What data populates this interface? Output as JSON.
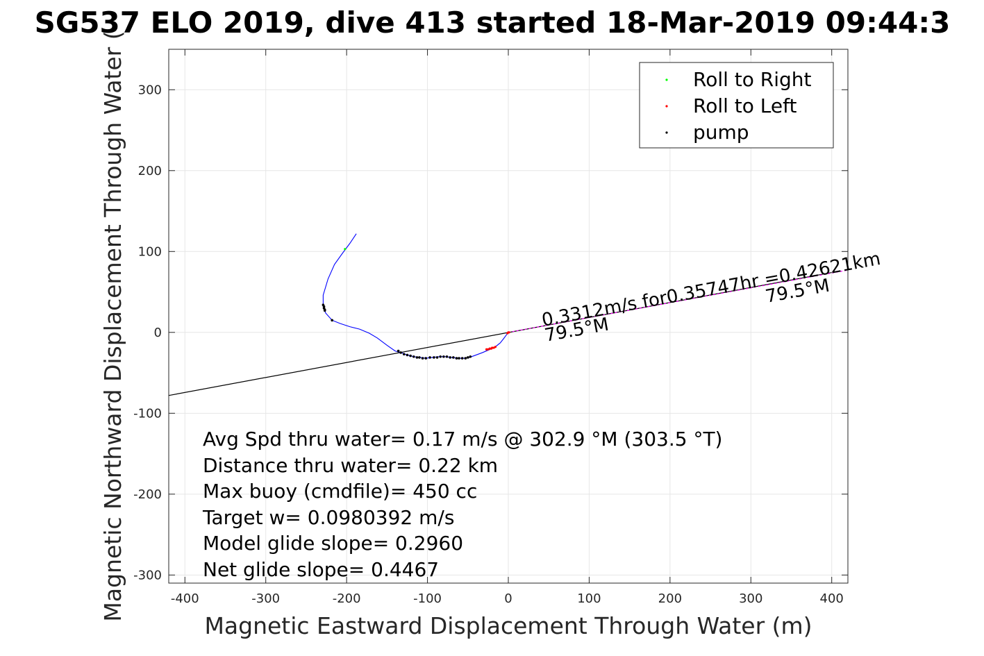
{
  "chart_data": {
    "type": "line",
    "title": "SG537 ELO 2019, dive 413 started 18-Mar-2019 09:44:3",
    "xlabel": "Magnetic Eastward Displacement Through Water (m)",
    "ylabel": "Magnetic Northward Displacement Through Water (",
    "xlim": [
      -420,
      420
    ],
    "ylim": [
      -310,
      350
    ],
    "xticks": [
      -400,
      -300,
      -200,
      -100,
      0,
      100,
      200,
      300,
      400
    ],
    "yticks": [
      -300,
      -200,
      -100,
      0,
      100,
      200,
      300
    ],
    "grid": true,
    "legend_position": "top-right",
    "legend": [
      {
        "label": "Roll to Right",
        "color": "#00ff00"
      },
      {
        "label": "Roll to Left",
        "color": "#ff0000"
      },
      {
        "label": "pump",
        "color": "#000000"
      }
    ],
    "track": {
      "color": "#0000ff",
      "x": [
        -188,
        -196,
        -205,
        -215,
        -223,
        -229,
        -229,
        -226,
        -218,
        -208,
        -196,
        -184,
        -172,
        -162,
        -150,
        -140,
        -133,
        -125,
        -117,
        -109,
        -102,
        -94,
        -86,
        -78,
        -70,
        -62,
        -55,
        -48,
        -40,
        -32,
        -25,
        -20,
        -15,
        -10,
        -6,
        -3,
        0
      ],
      "y": [
        122,
        110,
        98,
        84,
        66,
        46,
        32,
        24,
        15,
        11,
        7,
        4,
        -1,
        -7,
        -16,
        -23,
        -25,
        -28,
        -30,
        -31,
        -32,
        -31,
        -30,
        -30,
        -31,
        -32,
        -32,
        -31,
        -28,
        -25,
        -22,
        -20,
        -17,
        -13,
        -8,
        -4,
        0
      ]
    },
    "heading_line": {
      "color": "#000000",
      "x": [
        -420,
        400
      ],
      "y": [
        -78,
        74
      ],
      "label_a": "79.5°M",
      "label_b": "79.5°M"
    },
    "dash_line": {
      "color": "#ff00ff",
      "x": [
        0,
        420
      ],
      "y": [
        0,
        77
      ],
      "label": "0.3312m/s for0.35747hr =0.42621km"
    },
    "roll_right_points": {
      "x": [
        -202
      ],
      "y": [
        103
      ]
    },
    "roll_left_points": {
      "x": [
        -27,
        -25,
        -23,
        -21,
        -20,
        -18,
        -16,
        -1,
        0,
        1
      ],
      "y": [
        -21,
        -21,
        -20,
        -20,
        -19,
        -19,
        -18,
        -1,
        0,
        0
      ]
    },
    "pump_points": {
      "x": [
        -229,
        -228,
        -228,
        -227,
        -227,
        -218,
        -136,
        -133,
        -129,
        -125,
        -121,
        -117,
        -113,
        -110,
        -106,
        -102,
        -97,
        -92,
        -88,
        -84,
        -80,
        -76,
        -72,
        -68,
        -64,
        -61,
        -57,
        -53,
        -50,
        -47
      ],
      "y": [
        34,
        32,
        30,
        28,
        27,
        15,
        -23,
        -25,
        -27,
        -28,
        -29,
        -30,
        -31,
        -31,
        -32,
        -32,
        -31,
        -31,
        -31,
        -30,
        -30,
        -30,
        -31,
        -31,
        -32,
        -32,
        -32,
        -32,
        -31,
        -30
      ]
    },
    "annotations": [
      "Avg Spd thru water=  0.17 m/s @ 302.9 °M (303.5 °T)",
      "Distance thru water=  0.22 km",
      "Max buoy (cmdfile)= 450 cc",
      "Target w= 0.0980392 m/s",
      "Model glide slope= 0.2960",
      "Net glide slope= 0.4467"
    ]
  }
}
